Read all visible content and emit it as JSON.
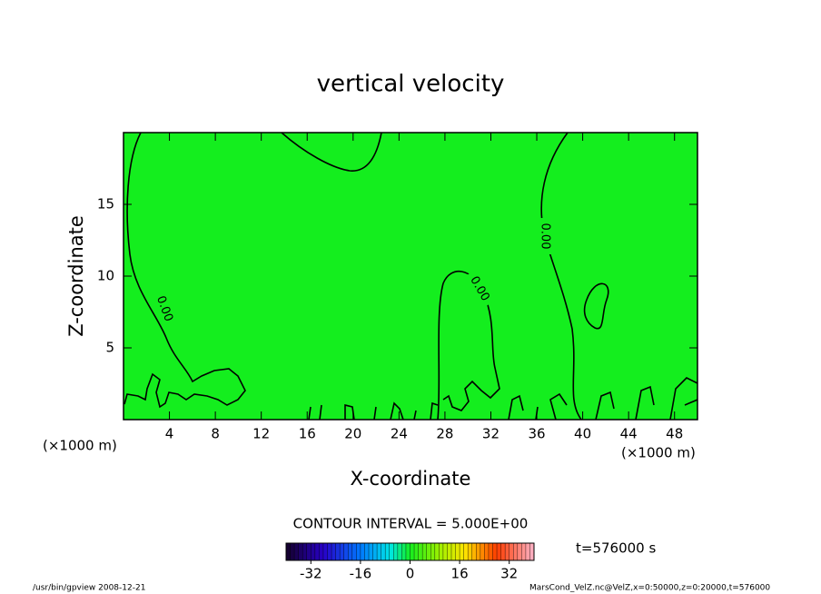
{
  "chart_data": {
    "type": "contour",
    "title": "vertical velocity",
    "x_label": "X-coordinate",
    "y_label": "Z-coordinate",
    "x_unit": "(×1000 m)",
    "x_unit_right": "(×1000 m)",
    "xlim": [
      0,
      50
    ],
    "xticks": [
      4,
      8,
      12,
      16,
      20,
      24,
      28,
      32,
      36,
      40,
      44,
      48
    ],
    "ylim": [
      0,
      20
    ],
    "yticks": [
      5,
      10,
      15
    ],
    "fill_color": "#14ee1e",
    "contour_labels": [
      "0.00",
      "0.00",
      "0.00"
    ],
    "contour_interval": "CONTOUR INTERVAL = 5.000E+00",
    "time_label": "t=576000 s",
    "colorbar": {
      "lim": [
        -40,
        40
      ],
      "ticks": [
        -32,
        -16,
        0,
        16,
        32
      ]
    },
    "footer_left": "/usr/bin/gpview   2008-12-21",
    "footer_right": "MarsCond_VelZ.nc@VelZ,x=0:50000,z=0:20000,t=576000"
  }
}
